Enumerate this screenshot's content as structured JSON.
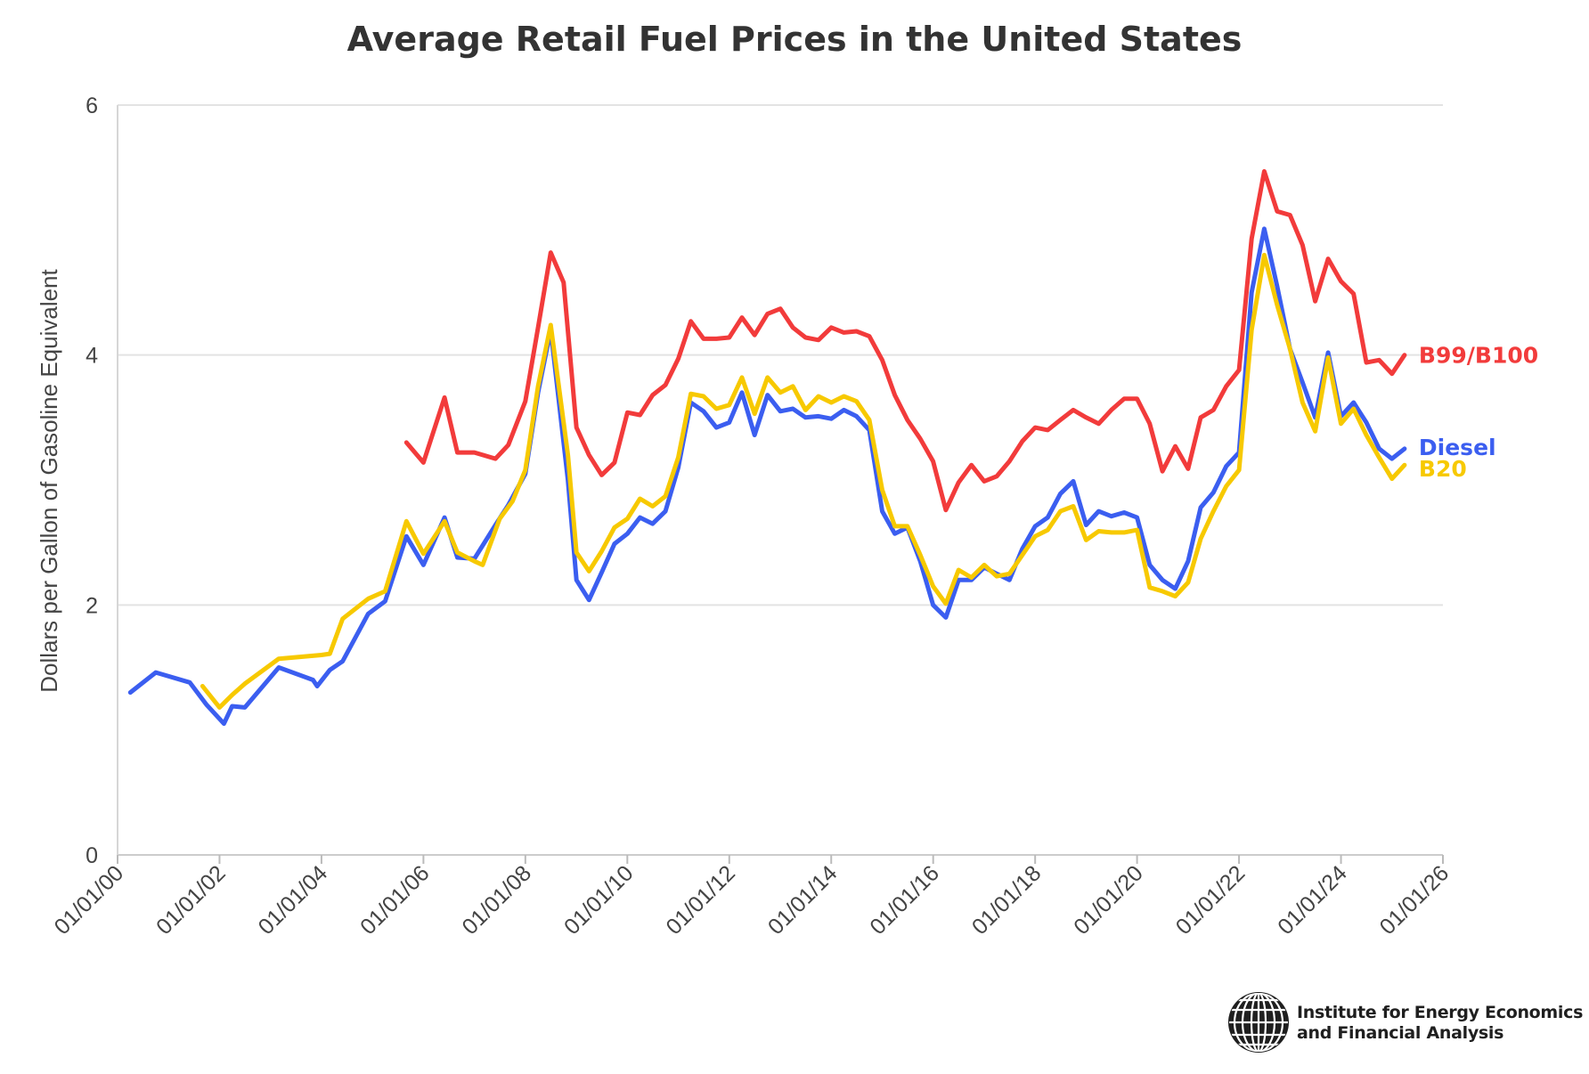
{
  "chart_data": {
    "type": "line",
    "title": "Average Retail Fuel Prices in the United States",
    "ylabel": "Dollars per Gallon of Gasoline Equivalent",
    "xlabel": "",
    "ylim": [
      0,
      6
    ],
    "yticks": [
      0,
      2,
      4,
      6
    ],
    "xlim": [
      "2000-01-01",
      "2026-01-01"
    ],
    "xtick_labels": [
      "01/01/00",
      "01/01/02",
      "01/01/04",
      "01/01/06",
      "01/01/08",
      "01/01/10",
      "01/01/12",
      "01/01/14",
      "01/01/16",
      "01/01/18",
      "01/01/20",
      "01/01/22",
      "01/01/24",
      "01/01/26"
    ],
    "grid": "horizontal",
    "legend": "direct labels at line ends (right)",
    "series": [
      {
        "name": "Diesel",
        "color": "#3b5ef0",
        "points": [
          [
            "2000-04-01",
            1.3
          ],
          [
            "2000-10-01",
            1.46
          ],
          [
            "2001-06-01",
            1.38
          ],
          [
            "2001-10-01",
            1.2
          ],
          [
            "2002-02-01",
            1.05
          ],
          [
            "2002-04-01",
            1.19
          ],
          [
            "2002-07-01",
            1.18
          ],
          [
            "2003-03-01",
            1.5
          ],
          [
            "2003-11-01",
            1.4
          ],
          [
            "2003-12-01",
            1.35
          ],
          [
            "2004-03-01",
            1.48
          ],
          [
            "2004-06-01",
            1.55
          ],
          [
            "2004-12-01",
            1.93
          ],
          [
            "2005-04-01",
            2.03
          ],
          [
            "2005-09-01",
            2.55
          ],
          [
            "2006-01-01",
            2.32
          ],
          [
            "2006-06-01",
            2.7
          ],
          [
            "2006-09-01",
            2.38
          ],
          [
            "2007-01-01",
            2.37
          ],
          [
            "2007-06-01",
            2.64
          ],
          [
            "2007-09-01",
            2.8
          ],
          [
            "2008-01-01",
            3.05
          ],
          [
            "2008-04-01",
            3.7
          ],
          [
            "2008-07-01",
            4.2
          ],
          [
            "2008-11-01",
            3.0
          ],
          [
            "2009-01-01",
            2.2
          ],
          [
            "2009-04-01",
            2.04
          ],
          [
            "2009-07-01",
            2.26
          ],
          [
            "2009-10-01",
            2.49
          ],
          [
            "2010-01-01",
            2.57
          ],
          [
            "2010-04-01",
            2.7
          ],
          [
            "2010-07-01",
            2.65
          ],
          [
            "2010-10-01",
            2.75
          ],
          [
            "2011-01-01",
            3.1
          ],
          [
            "2011-04-01",
            3.62
          ],
          [
            "2011-07-01",
            3.55
          ],
          [
            "2011-10-01",
            3.42
          ],
          [
            "2012-01-01",
            3.46
          ],
          [
            "2012-04-01",
            3.7
          ],
          [
            "2012-07-01",
            3.36
          ],
          [
            "2012-10-01",
            3.68
          ],
          [
            "2013-01-01",
            3.55
          ],
          [
            "2013-04-01",
            3.57
          ],
          [
            "2013-07-01",
            3.5
          ],
          [
            "2013-10-01",
            3.51
          ],
          [
            "2014-01-01",
            3.49
          ],
          [
            "2014-04-01",
            3.56
          ],
          [
            "2014-07-01",
            3.51
          ],
          [
            "2014-10-01",
            3.4
          ],
          [
            "2015-01-01",
            2.75
          ],
          [
            "2015-04-01",
            2.57
          ],
          [
            "2015-07-01",
            2.62
          ],
          [
            "2015-10-01",
            2.35
          ],
          [
            "2016-01-01",
            2.0
          ],
          [
            "2016-04-01",
            1.9
          ],
          [
            "2016-07-01",
            2.2
          ],
          [
            "2016-10-01",
            2.2
          ],
          [
            "2017-01-01",
            2.3
          ],
          [
            "2017-04-01",
            2.25
          ],
          [
            "2017-07-01",
            2.2
          ],
          [
            "2017-10-01",
            2.45
          ],
          [
            "2018-01-01",
            2.63
          ],
          [
            "2018-04-01",
            2.7
          ],
          [
            "2018-07-01",
            2.89
          ],
          [
            "2018-10-01",
            2.99
          ],
          [
            "2019-01-01",
            2.64
          ],
          [
            "2019-04-01",
            2.75
          ],
          [
            "2019-07-01",
            2.71
          ],
          [
            "2019-10-01",
            2.74
          ],
          [
            "2020-01-01",
            2.7
          ],
          [
            "2020-04-01",
            2.32
          ],
          [
            "2020-07-01",
            2.2
          ],
          [
            "2020-10-01",
            2.13
          ],
          [
            "2021-01-01",
            2.35
          ],
          [
            "2021-04-01",
            2.78
          ],
          [
            "2021-07-01",
            2.9
          ],
          [
            "2021-10-01",
            3.11
          ],
          [
            "2022-01-01",
            3.22
          ],
          [
            "2022-04-01",
            4.5
          ],
          [
            "2022-07-01",
            5.01
          ],
          [
            "2022-10-01",
            4.55
          ],
          [
            "2023-01-01",
            4.05
          ],
          [
            "2023-04-01",
            3.78
          ],
          [
            "2023-07-01",
            3.5
          ],
          [
            "2023-10-01",
            4.02
          ],
          [
            "2024-01-01",
            3.51
          ],
          [
            "2024-04-01",
            3.62
          ],
          [
            "2024-07-01",
            3.46
          ],
          [
            "2024-10-01",
            3.25
          ],
          [
            "2025-01-01",
            3.17
          ],
          [
            "2025-04-01",
            3.25
          ]
        ]
      },
      {
        "name": "B20",
        "color": "#f7c900",
        "points": [
          [
            "2001-09-01",
            1.35
          ],
          [
            "2002-01-01",
            1.18
          ],
          [
            "2002-04-01",
            1.28
          ],
          [
            "2002-07-01",
            1.37
          ],
          [
            "2003-03-01",
            1.57
          ],
          [
            "2004-01-01",
            1.6
          ],
          [
            "2004-03-01",
            1.61
          ],
          [
            "2004-06-01",
            1.89
          ],
          [
            "2004-12-01",
            2.05
          ],
          [
            "2005-04-01",
            2.11
          ],
          [
            "2005-09-01",
            2.67
          ],
          [
            "2006-01-01",
            2.41
          ],
          [
            "2006-06-01",
            2.67
          ],
          [
            "2006-09-01",
            2.42
          ],
          [
            "2007-01-01",
            2.35
          ],
          [
            "2007-03-01",
            2.32
          ],
          [
            "2007-07-01",
            2.69
          ],
          [
            "2007-10-01",
            2.83
          ],
          [
            "2008-01-01",
            3.08
          ],
          [
            "2008-04-01",
            3.75
          ],
          [
            "2008-07-01",
            4.24
          ],
          [
            "2008-11-01",
            3.2
          ],
          [
            "2009-01-01",
            2.42
          ],
          [
            "2009-04-01",
            2.27
          ],
          [
            "2009-07-01",
            2.43
          ],
          [
            "2009-10-01",
            2.62
          ],
          [
            "2010-01-01",
            2.69
          ],
          [
            "2010-04-01",
            2.85
          ],
          [
            "2010-07-01",
            2.79
          ],
          [
            "2010-10-01",
            2.87
          ],
          [
            "2011-01-01",
            3.18
          ],
          [
            "2011-04-01",
            3.69
          ],
          [
            "2011-07-01",
            3.67
          ],
          [
            "2011-10-01",
            3.57
          ],
          [
            "2012-01-01",
            3.6
          ],
          [
            "2012-04-01",
            3.82
          ],
          [
            "2012-07-01",
            3.53
          ],
          [
            "2012-10-01",
            3.82
          ],
          [
            "2013-01-01",
            3.7
          ],
          [
            "2013-04-01",
            3.75
          ],
          [
            "2013-07-01",
            3.56
          ],
          [
            "2013-10-01",
            3.67
          ],
          [
            "2014-01-01",
            3.62
          ],
          [
            "2014-04-01",
            3.67
          ],
          [
            "2014-07-01",
            3.63
          ],
          [
            "2014-10-01",
            3.48
          ],
          [
            "2015-01-01",
            2.92
          ],
          [
            "2015-04-01",
            2.63
          ],
          [
            "2015-07-01",
            2.63
          ],
          [
            "2015-10-01",
            2.4
          ],
          [
            "2016-01-01",
            2.15
          ],
          [
            "2016-04-01",
            2.01
          ],
          [
            "2016-07-01",
            2.28
          ],
          [
            "2016-10-01",
            2.22
          ],
          [
            "2017-01-01",
            2.32
          ],
          [
            "2017-04-01",
            2.23
          ],
          [
            "2017-07-01",
            2.25
          ],
          [
            "2017-10-01",
            2.4
          ],
          [
            "2018-01-01",
            2.55
          ],
          [
            "2018-04-01",
            2.6
          ],
          [
            "2018-07-01",
            2.75
          ],
          [
            "2018-10-01",
            2.79
          ],
          [
            "2019-01-01",
            2.52
          ],
          [
            "2019-04-01",
            2.59
          ],
          [
            "2019-07-01",
            2.58
          ],
          [
            "2019-10-01",
            2.58
          ],
          [
            "2020-01-01",
            2.6
          ],
          [
            "2020-04-01",
            2.14
          ],
          [
            "2020-07-01",
            2.11
          ],
          [
            "2020-10-01",
            2.07
          ],
          [
            "2021-01-01",
            2.18
          ],
          [
            "2021-04-01",
            2.53
          ],
          [
            "2021-07-01",
            2.75
          ],
          [
            "2021-10-01",
            2.95
          ],
          [
            "2022-01-01",
            3.08
          ],
          [
            "2022-04-01",
            4.2
          ],
          [
            "2022-07-01",
            4.8
          ],
          [
            "2022-10-01",
            4.4
          ],
          [
            "2023-01-01",
            4.05
          ],
          [
            "2023-04-01",
            3.62
          ],
          [
            "2023-07-01",
            3.39
          ],
          [
            "2023-10-01",
            3.98
          ],
          [
            "2024-01-01",
            3.45
          ],
          [
            "2024-04-01",
            3.57
          ],
          [
            "2024-07-01",
            3.36
          ],
          [
            "2024-10-01",
            3.18
          ],
          [
            "2025-01-01",
            3.01
          ],
          [
            "2025-04-01",
            3.12
          ]
        ]
      },
      {
        "name": "B99/B100",
        "color": "#f23b3b",
        "points": [
          [
            "2005-09-01",
            3.3
          ],
          [
            "2006-01-01",
            3.14
          ],
          [
            "2006-06-01",
            3.66
          ],
          [
            "2006-09-01",
            3.22
          ],
          [
            "2007-01-01",
            3.22
          ],
          [
            "2007-06-01",
            3.17
          ],
          [
            "2007-09-01",
            3.28
          ],
          [
            "2008-01-01",
            3.63
          ],
          [
            "2008-04-01",
            4.22
          ],
          [
            "2008-07-01",
            4.82
          ],
          [
            "2008-10-01",
            4.58
          ],
          [
            "2009-01-01",
            3.42
          ],
          [
            "2009-04-01",
            3.2
          ],
          [
            "2009-07-01",
            3.04
          ],
          [
            "2009-10-01",
            3.14
          ],
          [
            "2010-01-01",
            3.54
          ],
          [
            "2010-04-01",
            3.52
          ],
          [
            "2010-07-01",
            3.68
          ],
          [
            "2010-10-01",
            3.76
          ],
          [
            "2011-01-01",
            3.97
          ],
          [
            "2011-04-01",
            4.27
          ],
          [
            "2011-07-01",
            4.13
          ],
          [
            "2011-10-01",
            4.13
          ],
          [
            "2012-01-01",
            4.14
          ],
          [
            "2012-04-01",
            4.3
          ],
          [
            "2012-07-01",
            4.16
          ],
          [
            "2012-10-01",
            4.33
          ],
          [
            "2013-01-01",
            4.37
          ],
          [
            "2013-04-01",
            4.22
          ],
          [
            "2013-07-01",
            4.14
          ],
          [
            "2013-10-01",
            4.12
          ],
          [
            "2014-01-01",
            4.22
          ],
          [
            "2014-04-01",
            4.18
          ],
          [
            "2014-07-01",
            4.19
          ],
          [
            "2014-10-01",
            4.15
          ],
          [
            "2015-01-01",
            3.96
          ],
          [
            "2015-04-01",
            3.68
          ],
          [
            "2015-07-01",
            3.48
          ],
          [
            "2015-10-01",
            3.33
          ],
          [
            "2016-01-01",
            3.15
          ],
          [
            "2016-04-01",
            2.76
          ],
          [
            "2016-07-01",
            2.98
          ],
          [
            "2016-10-01",
            3.12
          ],
          [
            "2017-01-01",
            2.99
          ],
          [
            "2017-04-01",
            3.03
          ],
          [
            "2017-07-01",
            3.15
          ],
          [
            "2017-10-01",
            3.31
          ],
          [
            "2018-01-01",
            3.42
          ],
          [
            "2018-04-01",
            3.4
          ],
          [
            "2018-07-01",
            3.48
          ],
          [
            "2018-10-01",
            3.56
          ],
          [
            "2019-01-01",
            3.5
          ],
          [
            "2019-04-01",
            3.45
          ],
          [
            "2019-07-01",
            3.56
          ],
          [
            "2019-10-01",
            3.65
          ],
          [
            "2020-01-01",
            3.65
          ],
          [
            "2020-04-01",
            3.45
          ],
          [
            "2020-07-01",
            3.07
          ],
          [
            "2020-10-01",
            3.27
          ],
          [
            "2021-01-01",
            3.09
          ],
          [
            "2021-04-01",
            3.5
          ],
          [
            "2021-07-01",
            3.56
          ],
          [
            "2021-10-01",
            3.75
          ],
          [
            "2022-01-01",
            3.88
          ],
          [
            "2022-04-01",
            4.93
          ],
          [
            "2022-07-01",
            5.47
          ],
          [
            "2022-10-01",
            5.15
          ],
          [
            "2023-01-01",
            5.12
          ],
          [
            "2023-04-01",
            4.88
          ],
          [
            "2023-07-01",
            4.43
          ],
          [
            "2023-10-01",
            4.77
          ],
          [
            "2024-01-01",
            4.59
          ],
          [
            "2024-04-01",
            4.49
          ],
          [
            "2024-07-01",
            3.94
          ],
          [
            "2024-10-01",
            3.96
          ],
          [
            "2025-01-01",
            3.85
          ],
          [
            "2025-04-01",
            4.0
          ]
        ]
      }
    ]
  },
  "footer": {
    "org_line1": "Institute for Energy Economics",
    "org_line2": "and Financial Analysis",
    "logo_icon": "globe-grid-icon"
  }
}
